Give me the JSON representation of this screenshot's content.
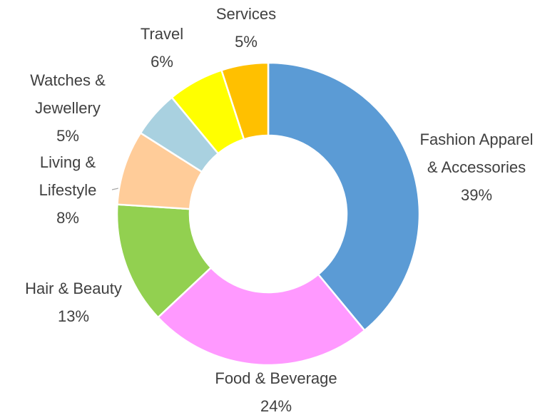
{
  "chart_data": {
    "type": "donut",
    "categories": [
      "Fashion Apparel & Accessories",
      "Food & Beverage",
      "Hair & Beauty",
      "Living & Lifestyle",
      "Watches & Jewellery",
      "Travel",
      "Services"
    ],
    "values": [
      39,
      24,
      13,
      8,
      5,
      6,
      5
    ],
    "value_labels": [
      "39%",
      "24%",
      "13%",
      "8%",
      "5%",
      "6%",
      "5%"
    ],
    "colors": [
      "#5b9bd5",
      "#ff99ff",
      "#92d050",
      "#ffcc99",
      "#a9d1e0",
      "#ffff00",
      "#ffc000"
    ]
  }
}
